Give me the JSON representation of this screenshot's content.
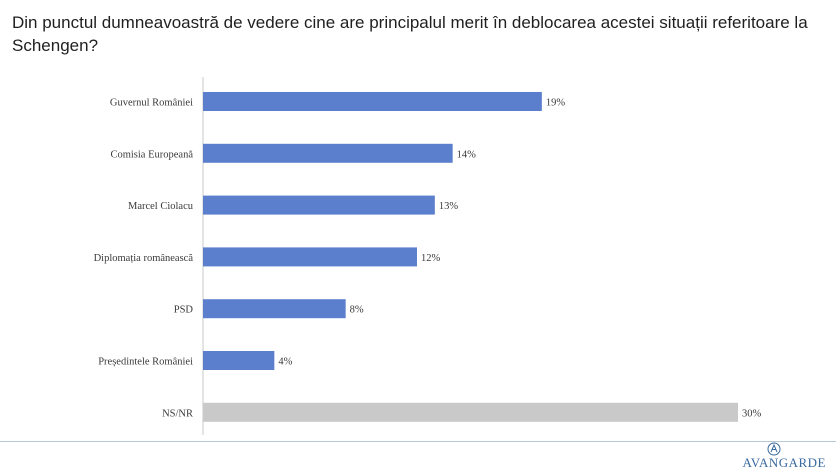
{
  "title": "Din punctul dumneavoastră de vedere cine are principalul merit în deblocarea acestei situații referitoare la Schengen?",
  "brand": "AVANGARDE",
  "colors": {
    "primary_bar": "#5b7fcc",
    "neutral_bar": "#c9c9c9",
    "axis": "#c8c8c8"
  },
  "chart_data": {
    "type": "bar",
    "orientation": "horizontal",
    "categories": [
      "Guvernul României",
      "Comisia Europeană",
      "Marcel Ciolacu",
      "Diplomația românească",
      "PSD",
      "Președintele României",
      "NS/NR"
    ],
    "values": [
      19,
      14,
      13,
      12,
      8,
      4,
      30
    ],
    "value_labels": [
      "19%",
      "14%",
      "13%",
      "12%",
      "8%",
      "4%",
      "30%"
    ],
    "unit": "%",
    "xlim": [
      0,
      30
    ],
    "grid": false,
    "legend": false
  }
}
